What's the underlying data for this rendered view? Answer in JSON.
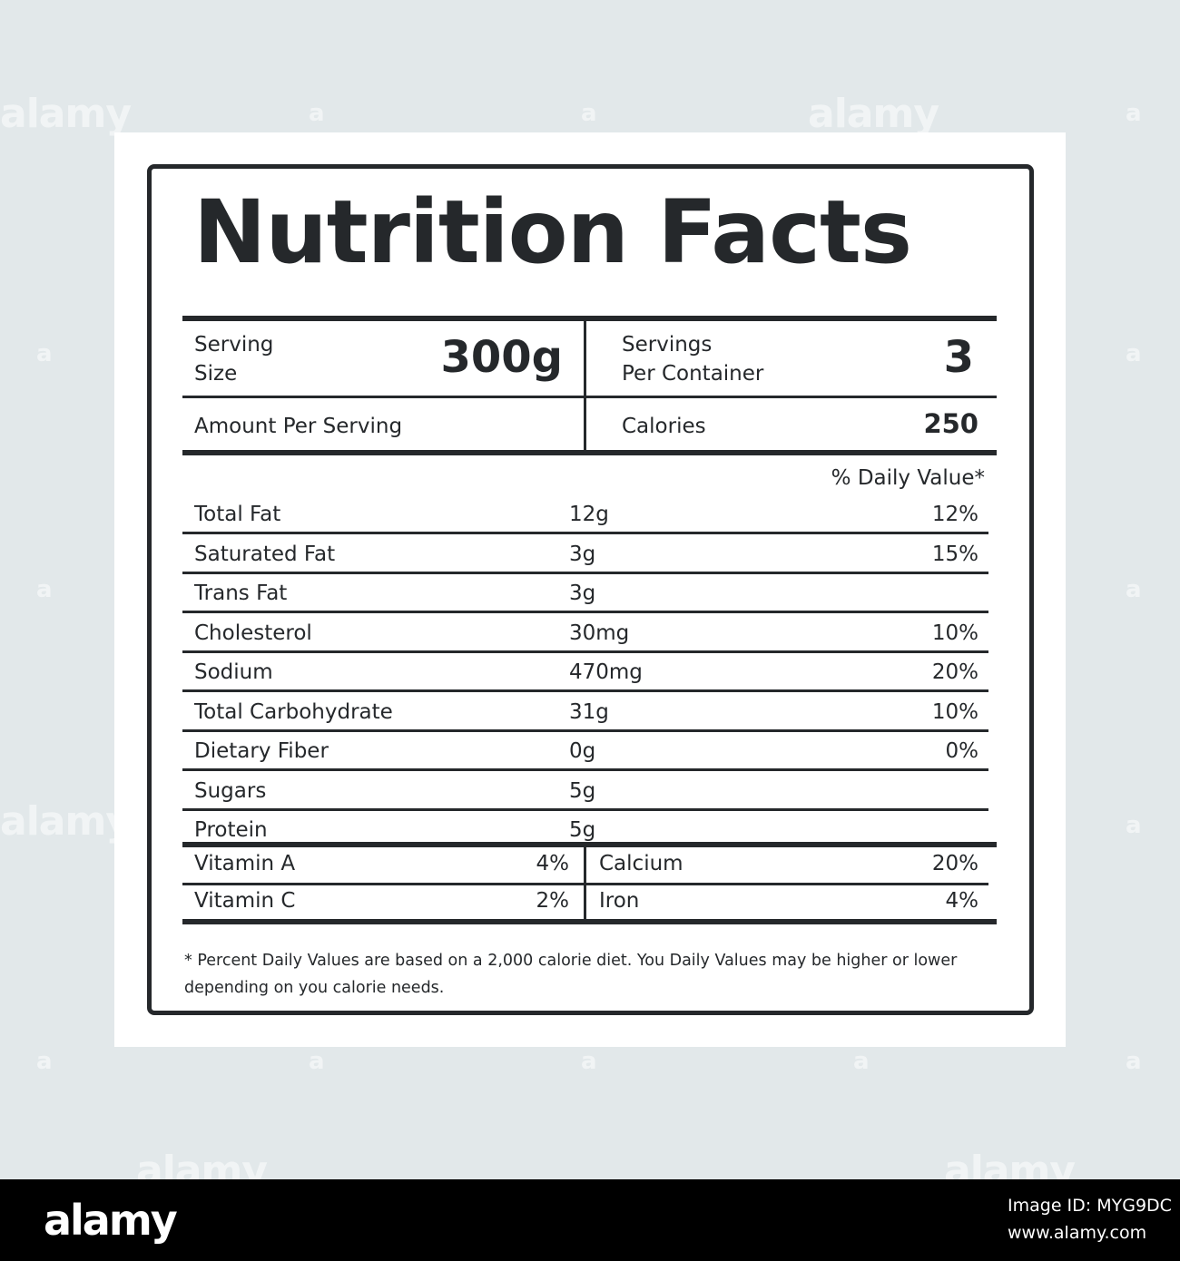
{
  "watermark": {
    "text": "alamy",
    "mark": "a"
  },
  "label": {
    "title": "Nutrition Facts",
    "serving_size_label_line1": "Serving",
    "serving_size_label_line2": "Size",
    "serving_size_value": "300g",
    "servings_per_container_label_line1": "Servings",
    "servings_per_container_label_line2": "Per Container",
    "servings_per_container_value": "3",
    "amount_per_serving": "Amount Per Serving",
    "calories_label": "Calories",
    "calories_value": "250",
    "daily_value_header": "% Daily Value*",
    "nutrients": [
      {
        "name": "Total Fat",
        "amount": "12g",
        "dv": "12%"
      },
      {
        "name": "Saturated Fat",
        "amount": "3g",
        "dv": "15%"
      },
      {
        "name": "Trans Fat",
        "amount": "3g",
        "dv": ""
      },
      {
        "name": "Cholesterol",
        "amount": "30mg",
        "dv": "10%"
      },
      {
        "name": "Sodium",
        "amount": "470mg",
        "dv": "20%"
      },
      {
        "name": "Total Carbohydrate",
        "amount": "31g",
        "dv": "10%"
      },
      {
        "name": "Dietary Fiber",
        "amount": "0g",
        "dv": "0%"
      },
      {
        "name": "Sugars",
        "amount": "5g",
        "dv": ""
      },
      {
        "name": "Protein",
        "amount": "5g",
        "dv": ""
      }
    ],
    "vitamins": [
      {
        "left_name": "Vitamin A",
        "left_value": "4%",
        "right_name": "Calcium",
        "right_value": "20%"
      },
      {
        "left_name": "Vitamin C",
        "left_value": "2%",
        "right_name": "Iron",
        "right_value": "4%"
      }
    ],
    "footnote": "* Percent Daily Values are based on a 2,000 calorie diet. You Daily Values may be higher or lower depending on you calorie needs."
  },
  "footer": {
    "logo": "alamy",
    "image_id": "Image ID: MYG9DC",
    "site": "www.alamy.com"
  },
  "colors": {
    "background": "#e2e8ea",
    "ink": "#25282b",
    "paper": "#ffffff",
    "footer": "#000000"
  }
}
